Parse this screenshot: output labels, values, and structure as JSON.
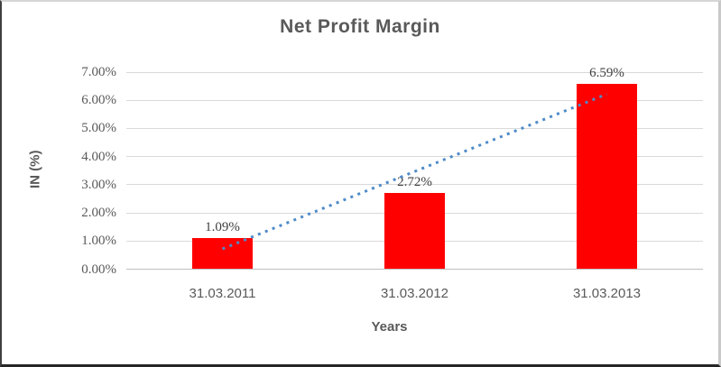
{
  "chart_data": {
    "type": "bar",
    "title": "Net Profit Margin",
    "categories": [
      "31.03.2011",
      "31.03.2012",
      "31.03.2013"
    ],
    "values": [
      1.09,
      2.72,
      6.59
    ],
    "data_labels": [
      "1.09%",
      "2.72%",
      "6.59%"
    ],
    "xlabel": "Years",
    "ylabel": "IN (%)",
    "ylim": [
      0,
      7
    ],
    "ytick_step": 1,
    "ytick_labels": [
      "0.00%",
      "1.00%",
      "2.00%",
      "3.00%",
      "4.00%",
      "5.00%",
      "6.00%",
      "7.00%"
    ],
    "grid": true,
    "legend": "none",
    "colors": {
      "bar": "#FF0000",
      "trendline": "#4E8AC8",
      "gridline": "#D9D9D9",
      "axis_line": "#BFBFBF",
      "title_text": "#595959",
      "tick_text": "#595959",
      "data_label_text": "#404040"
    },
    "trendline": {
      "type": "linear",
      "style": "dotted",
      "endpoint_values": [
        0.72,
        6.22
      ]
    }
  }
}
